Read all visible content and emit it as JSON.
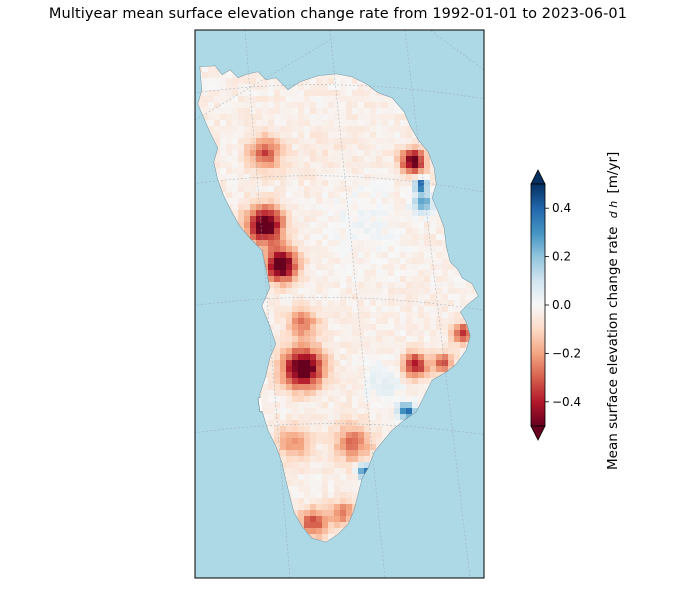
{
  "title": "Multiyear mean surface elevation change rate from 1992-01-01 to 2023-06-01",
  "map": {
    "region": "Greenland",
    "ocean_color": "#add8e6",
    "land_color": "#ffffff",
    "coastline_color": "#5f7f8a",
    "gridlines": "on"
  },
  "colorbar": {
    "label": "Mean surface elevation change rate",
    "label_math": "dh/dt",
    "label_unit": "[m/yr]",
    "colormap": "RdBu",
    "min": -0.5,
    "max": 0.5,
    "extend": "both",
    "ticks": [
      0.4,
      0.2,
      0.0,
      -0.2,
      -0.4
    ],
    "tick_labels": [
      "0.4",
      "0.2",
      "0.0",
      "−0.2",
      "−0.4"
    ]
  }
}
